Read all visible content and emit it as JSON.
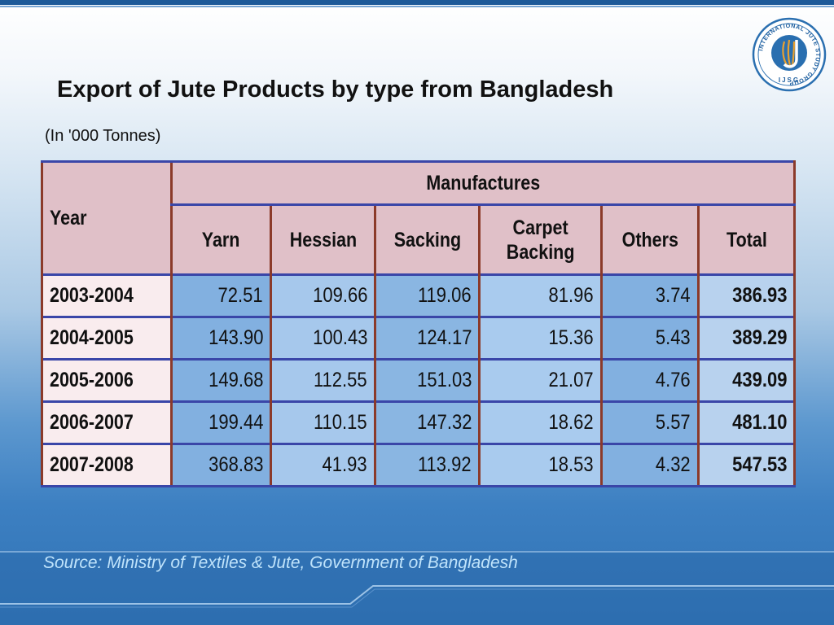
{
  "slide": {
    "title": "Export of Jute Products by type from Bangladesh",
    "units": "(In '000 Tonnes)",
    "source": "Source: Ministry of Textiles & Jute, Government of Bangladesh"
  },
  "logo": {
    "ring_text": "INTERNATIONAL JUTE STUDY GROUP",
    "abbr": "IJSG",
    "colors": {
      "ring": "#2a6fb0",
      "accent": "#e8a030"
    }
  },
  "table": {
    "year_header": "Year",
    "group_header": "Manufactures",
    "columns": [
      {
        "label_line1": "Yarn",
        "label_line2": ""
      },
      {
        "label_line1": "Hessian",
        "label_line2": ""
      },
      {
        "label_line1": "Sacking",
        "label_line2": ""
      },
      {
        "label_line1": "Carpet",
        "label_line2": "Backing"
      },
      {
        "label_line1": "Others",
        "label_line2": ""
      },
      {
        "label_line1": "Total",
        "label_line2": ""
      }
    ],
    "rows": [
      {
        "year": "2003-2004",
        "values": [
          "72.51",
          "109.66",
          "119.06",
          "81.96",
          "3.74"
        ],
        "total": "386.93"
      },
      {
        "year": "2004-2005",
        "values": [
          "143.90",
          "100.43",
          "124.17",
          "15.36",
          "5.43"
        ],
        "total": "389.29"
      },
      {
        "year": "2005-2006",
        "values": [
          "149.68",
          "112.55",
          "151.03",
          "21.07",
          "4.76"
        ],
        "total": "439.09"
      },
      {
        "year": "2006-2007",
        "values": [
          "199.44",
          "110.15",
          "147.32",
          "18.62",
          "5.57"
        ],
        "total": "481.10"
      },
      {
        "year": "2007-2008",
        "values": [
          "368.83",
          "41.93",
          "113.92",
          "18.53",
          "4.32"
        ],
        "total": "547.53"
      }
    ]
  }
}
